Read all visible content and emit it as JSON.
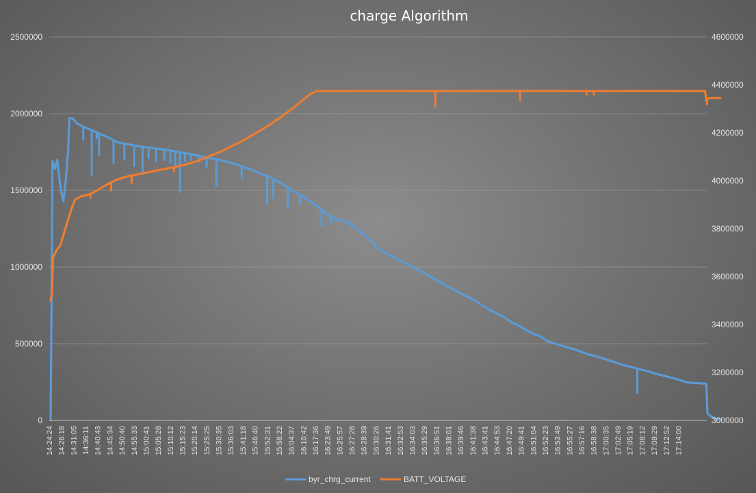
{
  "chart_data": {
    "type": "line",
    "title": "charge Algorithm",
    "xlabel": "",
    "ylabel": "",
    "y_left": {
      "min": 0,
      "max": 2500000,
      "ticks": [
        0,
        500000,
        1000000,
        1500000,
        2000000,
        2500000
      ]
    },
    "y_right": {
      "min": 3000000,
      "max": 4600000,
      "ticks": [
        3000000,
        3200000,
        3400000,
        3600000,
        3800000,
        4000000,
        4200000,
        4400000,
        4600000
      ]
    },
    "grid": true,
    "legend": "bottom",
    "x_tick_labels": [
      "14:24:24",
      "14:26:18",
      "14:31:05",
      "14:36:11",
      "14:40:43",
      "14:45:34",
      "14:50:40",
      "14:55:33",
      "15:00:41",
      "15:05:28",
      "15:10:12",
      "15:15:23",
      "15:20:14",
      "15:25:25",
      "15:30:35",
      "15:36:03",
      "15:41:18",
      "15:46:40",
      "15:52:31",
      "15:58:22",
      "16:04:37",
      "16:10:42",
      "16:17:36",
      "16:23:49",
      "16:25:57",
      "16:27:28",
      "16:28:39",
      "16:30:26",
      "16:31:41",
      "16:32:53",
      "16:34:03",
      "16:35:29",
      "16:36:51",
      "16:38:01",
      "16:39:46",
      "16:41:38",
      "16:43:41",
      "16:44:53",
      "16:47:20",
      "16:49:41",
      "16:51:04",
      "16:52:23",
      "16:53:49",
      "16:55:27",
      "16:57:16",
      "16:58:38",
      "17:00:35",
      "17:02:49",
      "17:05:19",
      "17:08:12",
      "17:09:29",
      "17:12:52",
      "17:14:00"
    ],
    "series": [
      {
        "name": "byr_chrg_current",
        "axis": "left",
        "color": "#5b9bd5",
        "points": [
          [
            0,
            0
          ],
          [
            0.08,
            820000
          ],
          [
            0.15,
            1690000
          ],
          [
            0.35,
            1640000
          ],
          [
            0.55,
            1700000
          ],
          [
            0.75,
            1560000
          ],
          [
            0.9,
            1480000
          ],
          [
            1.05,
            1430000
          ],
          [
            1.25,
            1560000
          ],
          [
            1.45,
            1760000
          ],
          [
            1.55,
            1970000
          ],
          [
            1.8,
            1970000
          ],
          [
            2.2,
            1935000
          ],
          [
            2.6,
            1920000
          ],
          [
            3,
            1905000
          ],
          [
            3.5,
            1890000
          ],
          [
            4,
            1870000
          ],
          [
            4.5,
            1855000
          ],
          [
            5,
            1835000
          ],
          [
            5.5,
            1815000
          ],
          [
            6,
            1805000
          ],
          [
            6.5,
            1800000
          ],
          [
            7,
            1790000
          ],
          [
            7.5,
            1785000
          ],
          [
            8,
            1780000
          ],
          [
            8.5,
            1775000
          ],
          [
            9,
            1770000
          ],
          [
            9.5,
            1765000
          ],
          [
            10,
            1758000
          ],
          [
            10.5,
            1750000
          ],
          [
            11,
            1744000
          ],
          [
            11.5,
            1737000
          ],
          [
            12,
            1730000
          ],
          [
            12.5,
            1722000
          ],
          [
            13,
            1713000
          ],
          [
            13.5,
            1705000
          ],
          [
            14,
            1697000
          ],
          [
            14.5,
            1688000
          ],
          [
            15,
            1678000
          ],
          [
            15.5,
            1665000
          ],
          [
            16,
            1652000
          ],
          [
            16.5,
            1638000
          ],
          [
            17,
            1622000
          ],
          [
            17.5,
            1606000
          ],
          [
            18,
            1590000
          ],
          [
            18.5,
            1570000
          ],
          [
            19,
            1548000
          ],
          [
            19.5,
            1525000
          ],
          [
            20,
            1500000
          ],
          [
            20.5,
            1475000
          ],
          [
            21,
            1450000
          ],
          [
            21.5,
            1425000
          ],
          [
            22,
            1398000
          ],
          [
            22.5,
            1368000
          ],
          [
            23,
            1338000
          ],
          [
            23.5,
            1315000
          ],
          [
            24,
            1305000
          ],
          [
            24.5,
            1295000
          ],
          [
            25,
            1268000
          ],
          [
            25.5,
            1238000
          ],
          [
            26,
            1205000
          ],
          [
            26.5,
            1170000
          ],
          [
            27,
            1125000
          ],
          [
            27.5,
            1100000
          ],
          [
            28,
            1078000
          ],
          [
            28.5,
            1058000
          ],
          [
            29,
            1038000
          ],
          [
            29.5,
            1018000
          ],
          [
            30,
            997000
          ],
          [
            30.5,
            977000
          ],
          [
            31,
            955000
          ],
          [
            31.5,
            933000
          ],
          [
            32,
            910000
          ],
          [
            32.5,
            888000
          ],
          [
            33,
            866000
          ],
          [
            33.5,
            845000
          ],
          [
            34,
            825000
          ],
          [
            34.5,
            805000
          ],
          [
            35,
            785000
          ],
          [
            35.5,
            760000
          ],
          [
            36,
            735000
          ],
          [
            36.5,
            712000
          ],
          [
            37,
            692000
          ],
          [
            37.5,
            672000
          ],
          [
            38,
            645000
          ],
          [
            38.5,
            625000
          ],
          [
            39,
            605000
          ],
          [
            39.5,
            580000
          ],
          [
            40,
            562000
          ],
          [
            40.5,
            548000
          ],
          [
            41,
            520000
          ],
          [
            41.5,
            505000
          ],
          [
            42,
            493000
          ],
          [
            42.5,
            482000
          ],
          [
            43,
            470000
          ],
          [
            43.5,
            458000
          ],
          [
            44,
            443000
          ],
          [
            44.5,
            430000
          ],
          [
            45,
            420000
          ],
          [
            45.5,
            408000
          ],
          [
            46,
            395000
          ],
          [
            46.5,
            383000
          ],
          [
            47,
            370000
          ],
          [
            47.5,
            358000
          ],
          [
            48,
            348000
          ],
          [
            48.5,
            337000
          ],
          [
            49,
            328000
          ],
          [
            49.5,
            318000
          ],
          [
            50,
            305000
          ],
          [
            50.5,
            295000
          ],
          [
            51,
            285000
          ],
          [
            51.5,
            275000
          ],
          [
            52,
            263000
          ],
          [
            52.5,
            250000
          ],
          [
            53,
            245000
          ],
          [
            53.5,
            243000
          ],
          [
            54,
            240000
          ],
          [
            54.2,
            240000
          ],
          [
            54.3,
            45000
          ],
          [
            54.6,
            25000
          ],
          [
            55,
            12000
          ],
          [
            55.35,
            10000
          ]
        ],
        "spikes": [
          [
            2.7,
            1830000
          ],
          [
            3.4,
            1600000
          ],
          [
            3.8,
            1840000
          ],
          [
            4.0,
            1730000
          ],
          [
            5.2,
            1680000
          ],
          [
            6.1,
            1700000
          ],
          [
            6.9,
            1660000
          ],
          [
            7.6,
            1620000
          ],
          [
            8.1,
            1710000
          ],
          [
            8.7,
            1690000
          ],
          [
            9.4,
            1700000
          ],
          [
            9.9,
            1680000
          ],
          [
            10.3,
            1650000
          ],
          [
            10.7,
            1490000
          ],
          [
            11.1,
            1690000
          ],
          [
            11.6,
            1700000
          ],
          [
            12.3,
            1690000
          ],
          [
            12.9,
            1650000
          ],
          [
            13.7,
            1530000
          ],
          [
            15.8,
            1580000
          ],
          [
            17.9,
            1410000
          ],
          [
            18.4,
            1450000
          ],
          [
            19.6,
            1380000
          ],
          [
            20.6,
            1410000
          ],
          [
            22.4,
            1270000
          ],
          [
            23.2,
            1280000
          ],
          [
            24.7,
            1280000
          ],
          [
            48.5,
            180000
          ]
        ]
      },
      {
        "name": "BATT_VOLTAGE",
        "axis": "right",
        "color": "#ed7d31",
        "points": [
          [
            0,
            3500000
          ],
          [
            0.1,
            3530000
          ],
          [
            0.2,
            3680000
          ],
          [
            0.5,
            3710000
          ],
          [
            0.8,
            3730000
          ],
          [
            1.1,
            3780000
          ],
          [
            1.4,
            3830000
          ],
          [
            1.7,
            3880000
          ],
          [
            2.0,
            3920000
          ],
          [
            2.5,
            3935000
          ],
          [
            3,
            3940000
          ],
          [
            3.5,
            3950000
          ],
          [
            4,
            3965000
          ],
          [
            4.5,
            3980000
          ],
          [
            5,
            3993000
          ],
          [
            5.5,
            4005000
          ],
          [
            6,
            4013000
          ],
          [
            6.5,
            4020000
          ],
          [
            7,
            4025000
          ],
          [
            7.5,
            4030000
          ],
          [
            8,
            4035000
          ],
          [
            8.5,
            4040000
          ],
          [
            9,
            4045000
          ],
          [
            9.5,
            4050000
          ],
          [
            10,
            4055000
          ],
          [
            10.5,
            4060000
          ],
          [
            11,
            4066000
          ],
          [
            11.5,
            4073000
          ],
          [
            12,
            4080000
          ],
          [
            12.5,
            4090000
          ],
          [
            13,
            4100000
          ],
          [
            13.5,
            4110000
          ],
          [
            14,
            4120000
          ],
          [
            14.5,
            4132000
          ],
          [
            15,
            4145000
          ],
          [
            15.5,
            4157000
          ],
          [
            16,
            4170000
          ],
          [
            16.5,
            4185000
          ],
          [
            17,
            4200000
          ],
          [
            17.5,
            4215000
          ],
          [
            18,
            4230000
          ],
          [
            18.5,
            4247000
          ],
          [
            19,
            4265000
          ],
          [
            19.5,
            4283000
          ],
          [
            20,
            4302000
          ],
          [
            20.5,
            4322000
          ],
          [
            21,
            4343000
          ],
          [
            21.5,
            4363000
          ],
          [
            22,
            4375000
          ],
          [
            22.5,
            4375000
          ],
          [
            23,
            4375000
          ],
          [
            23.5,
            4375000
          ],
          [
            54,
            4375000
          ],
          [
            54.1,
            4375000
          ],
          [
            54.2,
            4335000
          ],
          [
            54.4,
            4345000
          ],
          [
            55.35,
            4345000
          ]
        ],
        "spikes": [
          [
            3.3,
            3930000
          ],
          [
            5.0,
            3960000
          ],
          [
            6.7,
            3990000
          ],
          [
            10.2,
            4040000
          ],
          [
            31.8,
            4310000
          ],
          [
            38.8,
            4335000
          ],
          [
            44.3,
            4360000
          ],
          [
            44.9,
            4360000
          ],
          [
            54.25,
            4320000
          ]
        ]
      }
    ]
  }
}
